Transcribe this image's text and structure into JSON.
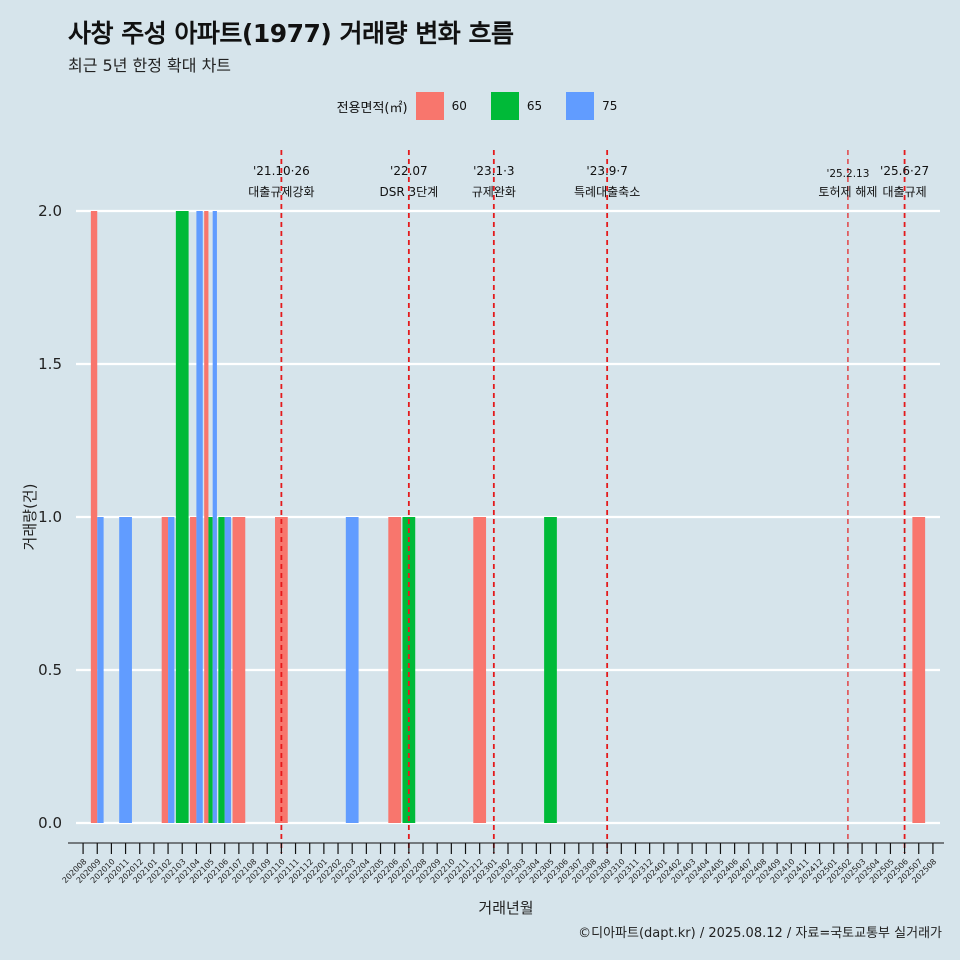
{
  "header": {
    "title": "사창 주성 아파트(1977) 거래량 변화 흐름",
    "subtitle": "최근 5년 한정 확대 차트"
  },
  "legend": {
    "title": "전용면적(㎡)",
    "items": [
      {
        "label": "60",
        "color": "#f8766d"
      },
      {
        "label": "65",
        "color": "#00ba38"
      },
      {
        "label": "75",
        "color": "#619cff"
      }
    ]
  },
  "caption": "©디아파트(dapt.kr) / 2025.08.12 / 자료=국토교통부 실거래가",
  "chart_data": {
    "type": "bar",
    "xlabel": "거래년월",
    "ylabel": "거래량(건)",
    "ylim": [
      0,
      2
    ],
    "yticks": [
      "0.0",
      "0.5",
      "1.0",
      "1.5",
      "2.0"
    ],
    "grid": "horizontal",
    "legend_position": "top",
    "categories": [
      "202008",
      "202009",
      "202010",
      "202011",
      "202012",
      "202101",
      "202102",
      "202103",
      "202104",
      "202105",
      "202106",
      "202107",
      "202108",
      "202109",
      "202110",
      "202111",
      "202112",
      "202201",
      "202202",
      "202203",
      "202204",
      "202205",
      "202206",
      "202207",
      "202208",
      "202209",
      "202210",
      "202211",
      "202212",
      "202301",
      "202302",
      "202303",
      "202304",
      "202305",
      "202306",
      "202307",
      "202308",
      "202309",
      "202310",
      "202311",
      "202312",
      "202401",
      "202402",
      "202403",
      "202404",
      "202405",
      "202406",
      "202407",
      "202408",
      "202409",
      "202410",
      "202411",
      "202412",
      "202501",
      "202502",
      "202503",
      "202504",
      "202505",
      "202506",
      "202507",
      "202508"
    ],
    "series": [
      {
        "name": "60",
        "color": "#f8766d",
        "points": [
          [
            "202009",
            2
          ],
          [
            "202102",
            1
          ],
          [
            "202104",
            1
          ],
          [
            "202105",
            2
          ],
          [
            "202107",
            1
          ],
          [
            "202110",
            1
          ],
          [
            "202206",
            1
          ],
          [
            "202212",
            1
          ],
          [
            "202507",
            1
          ]
        ]
      },
      {
        "name": "65",
        "color": "#00ba38",
        "points": [
          [
            "202103",
            2
          ],
          [
            "202105",
            1
          ],
          [
            "202106",
            1
          ],
          [
            "202207",
            1
          ],
          [
            "202305",
            1
          ]
        ]
      },
      {
        "name": "75",
        "color": "#619cff",
        "points": [
          [
            "202009",
            1
          ],
          [
            "202011",
            1
          ],
          [
            "202102",
            1
          ],
          [
            "202104",
            2
          ],
          [
            "202105",
            2
          ],
          [
            "202106",
            1
          ],
          [
            "202203",
            1
          ]
        ]
      }
    ],
    "annotations": [
      {
        "at": "202110",
        "date": "'21.10·26",
        "label": "대출규제강화"
      },
      {
        "at": "202207",
        "date": "'22.07",
        "label": "DSR 3단계"
      },
      {
        "at": "202301",
        "date": "'23.1·3",
        "label": "규제완화"
      },
      {
        "at": "202309",
        "date": "'23.9·7",
        "label": "특례대출축소"
      },
      {
        "at": "202502",
        "date": "'25.2.13",
        "label": "토허제 해제"
      },
      {
        "at": "202506",
        "date": "'25.6·27",
        "label": "대출규제"
      }
    ]
  }
}
